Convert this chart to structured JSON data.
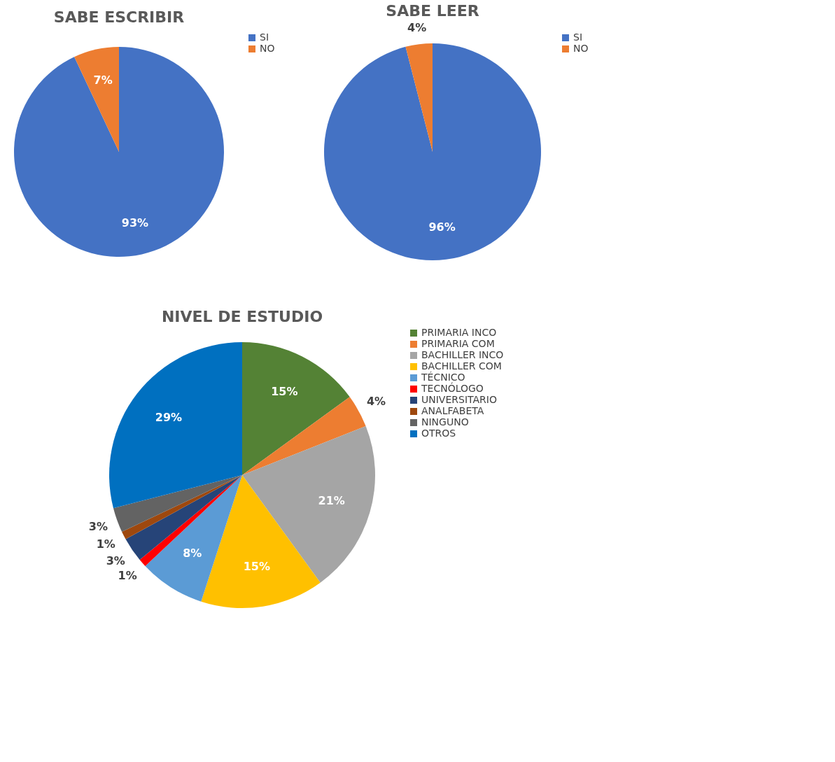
{
  "chart_data": [
    {
      "type": "pie",
      "title": "SABE ESCRIBIR",
      "categories": [
        "SI",
        "NO"
      ],
      "values": [
        93,
        7
      ],
      "colors": [
        "#4472c4",
        "#ed7d31"
      ],
      "value_labels": [
        "93%",
        "7%"
      ],
      "legend": "right"
    },
    {
      "type": "pie",
      "title": "SABE LEER",
      "categories": [
        "SI",
        "NO"
      ],
      "values": [
        96,
        4
      ],
      "colors": [
        "#4472c4",
        "#ed7d31"
      ],
      "value_labels": [
        "96%",
        "4%"
      ],
      "legend": "right"
    },
    {
      "type": "pie",
      "title": "NIVEL DE ESTUDIO",
      "categories": [
        "PRIMARIA INCO",
        "PRIMARIA COM",
        "BACHILLER INCO",
        "BACHILLER COM",
        "TÉCNICO",
        "TECNÓLOGO",
        "UNIVERSITARIO",
        "ANALFABETA",
        "NINGUNO",
        "OTROS"
      ],
      "values": [
        15,
        4,
        21,
        15,
        8,
        1,
        3,
        1,
        3,
        29
      ],
      "colors": [
        "#548235",
        "#ed7d31",
        "#a5a5a5",
        "#ffc000",
        "#5b9bd5",
        "#ff0000",
        "#264478",
        "#9e480e",
        "#636363",
        "#0070c0"
      ],
      "value_labels": [
        "15%",
        "4%",
        "21%",
        "15%",
        "8%",
        "1%",
        "3%",
        "1%",
        "3%",
        "29%"
      ],
      "legend": "right"
    }
  ]
}
